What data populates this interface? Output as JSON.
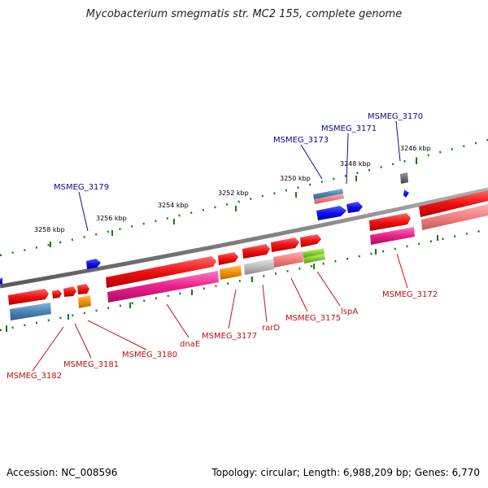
{
  "title": "Mycobacterium smegmatis str. MC2 155, complete genome",
  "footer": {
    "accession": "Accession: NC_008596",
    "summary": "Topology: circular; Length: 6,988,209 bp; Genes: 6,770"
  },
  "colors": {
    "backbone": "#808080",
    "tick": "#1a7a1a",
    "red_gene": "#ee1111",
    "blue_gene": "#1010ee",
    "label_blue": "#0b0b8f",
    "label_red": "#c01010",
    "steelblue": "#4a86b8",
    "pink": "#f08080",
    "magenta": "#e8208a",
    "orange": "#f0900a",
    "gray_gene": "#bbbbbb",
    "green_gene": "#88cc33"
  },
  "kbp_labels": [
    "3246 kbp",
    "3248 kbp",
    "3250 kbp",
    "3252 kbp",
    "3254 kbp",
    "3256 kbp",
    "3258 kbp"
  ],
  "gene_labels_top": [
    "MSMEG_3170",
    "MSMEG_3171",
    "MSMEG_3173",
    "MSMEG_3179"
  ],
  "gene_labels_bottom": [
    "MSMEG_3172",
    "lspA",
    "MSMEG_3175",
    "rarD",
    "MSMEG_3177",
    "dnaE",
    "MSMEG_3180",
    "MSMEG_3181",
    "MSMEG_3182"
  ]
}
